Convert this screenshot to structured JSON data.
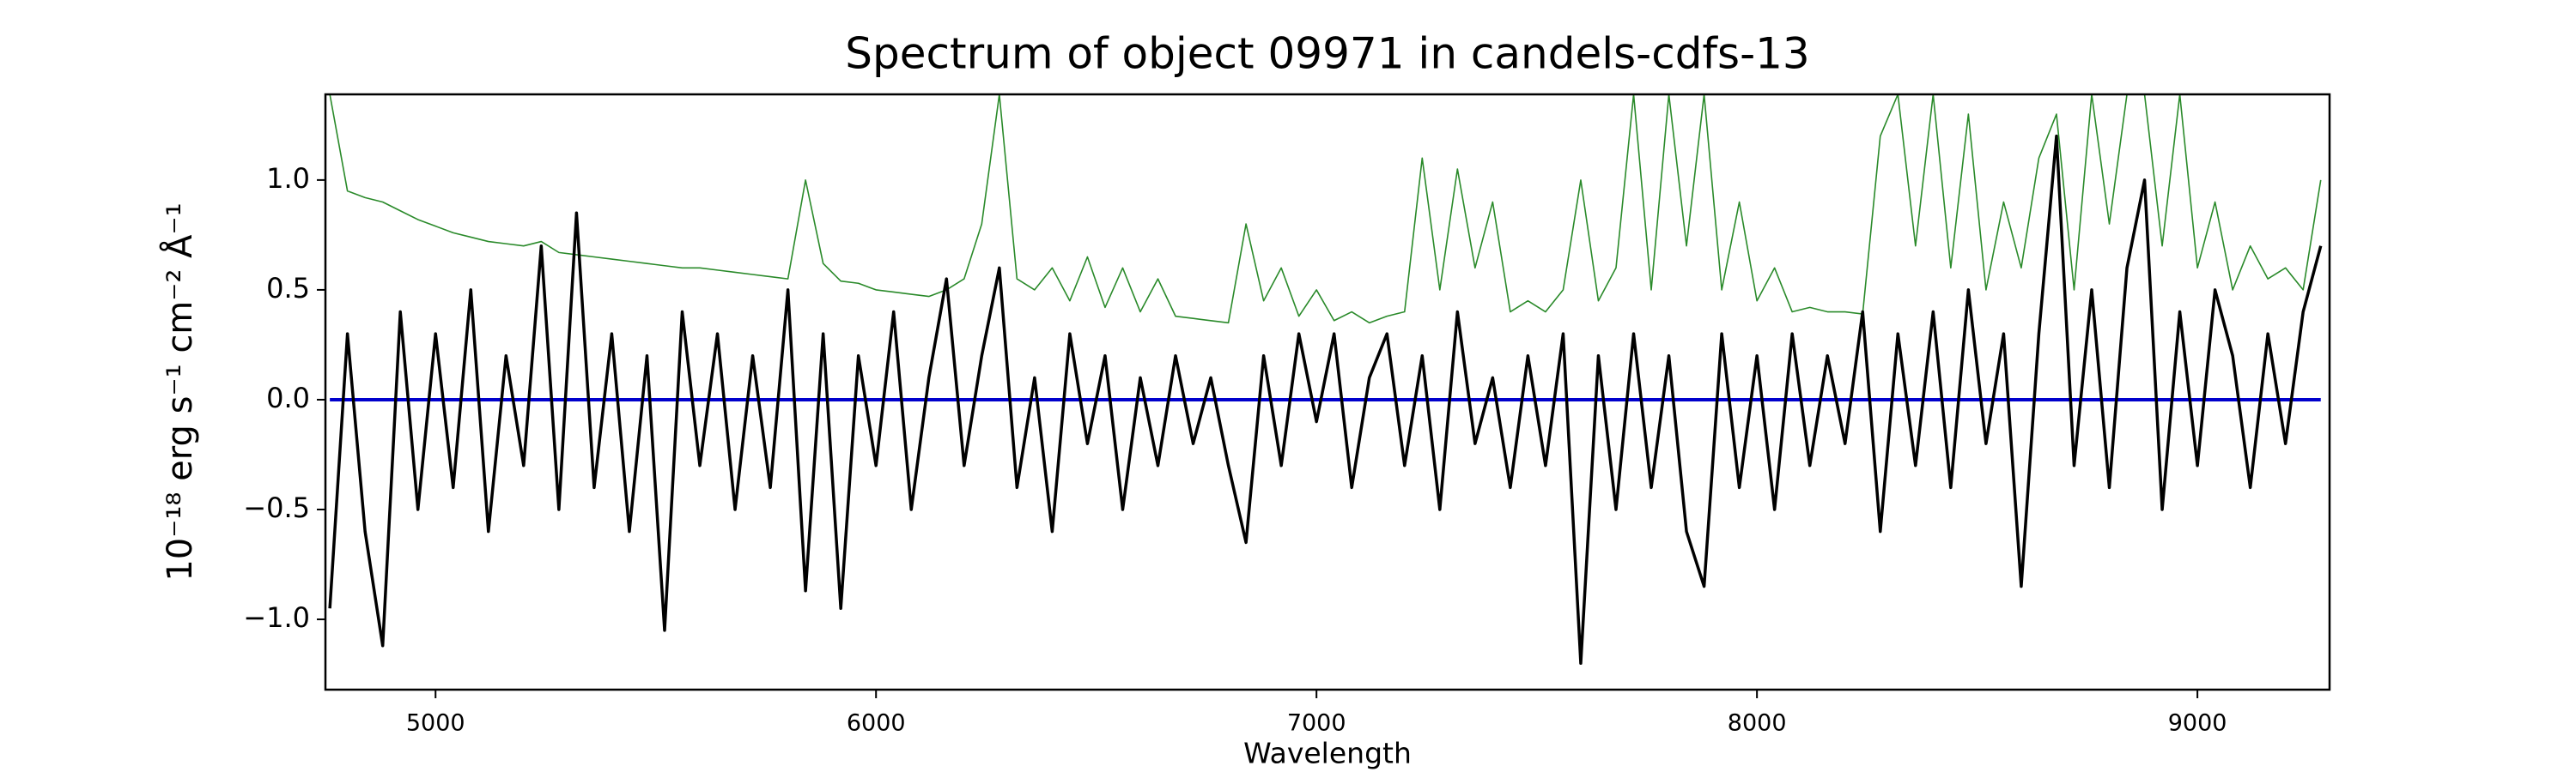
{
  "chart_data": {
    "type": "line",
    "title": "Spectrum of object 09971 in candels-cdfs-13",
    "x_label": "Wavelength",
    "y_label": "10⁻¹⁸ erg s⁻¹ cm⁻² Å⁻¹",
    "xlim": [
      4750,
      9300
    ],
    "ylim": [
      -1.32,
      1.39
    ],
    "xticks": [
      5000,
      6000,
      7000,
      8000,
      9000
    ],
    "yticks": [
      {
        "value": -1.0,
        "label": "−1.0"
      },
      {
        "value": -0.5,
        "label": "−0.5"
      },
      {
        "value": 0,
        "label": "0.0"
      },
      0.5,
      {
        "value": 1.0,
        "label": "1.0"
      }
    ],
    "x": [
      4760,
      4800,
      4840,
      4880,
      4920,
      4960,
      5000,
      5040,
      5080,
      5120,
      5160,
      5200,
      5240,
      5280,
      5320,
      5360,
      5400,
      5440,
      5480,
      5520,
      5560,
      5600,
      5640,
      5680,
      5720,
      5760,
      5800,
      5840,
      5880,
      5920,
      5960,
      6000,
      6040,
      6080,
      6120,
      6160,
      6200,
      6240,
      6280,
      6320,
      6360,
      6400,
      6440,
      6480,
      6520,
      6560,
      6600,
      6640,
      6680,
      6720,
      6760,
      6800,
      6840,
      6880,
      6920,
      6960,
      7000,
      7040,
      7080,
      7120,
      7160,
      7200,
      7240,
      7280,
      7320,
      7360,
      7400,
      7440,
      7480,
      7520,
      7560,
      7600,
      7640,
      7680,
      7720,
      7760,
      7800,
      7840,
      7880,
      7920,
      7960,
      8000,
      8040,
      8080,
      8120,
      8160,
      8200,
      8240,
      8280,
      8320,
      8360,
      8400,
      8440,
      8480,
      8520,
      8560,
      8600,
      8640,
      8680,
      8720,
      8760,
      8800,
      8840,
      8880,
      8920,
      8960,
      9000,
      9040,
      9080,
      9120,
      9160,
      9200,
      9240,
      9280
    ],
    "series": [
      {
        "color": "#2a8a2a",
        "width": 1.6,
        "values": [
          1.39,
          0.95,
          0.92,
          0.9,
          0.86,
          0.82,
          0.79,
          0.76,
          0.74,
          0.72,
          0.71,
          0.7,
          0.72,
          0.67,
          0.66,
          0.65,
          0.64,
          0.63,
          0.62,
          0.61,
          0.6,
          0.6,
          0.59,
          0.58,
          0.57,
          0.56,
          0.55,
          1.0,
          0.62,
          0.54,
          0.53,
          0.5,
          0.49,
          0.48,
          0.47,
          0.5,
          0.55,
          0.8,
          1.39,
          0.55,
          0.5,
          0.6,
          0.45,
          0.65,
          0.42,
          0.6,
          0.4,
          0.55,
          0.38,
          0.37,
          0.36,
          0.35,
          0.8,
          0.45,
          0.6,
          0.38,
          0.5,
          0.36,
          0.4,
          0.35,
          0.38,
          0.4,
          1.1,
          0.5,
          1.05,
          0.6,
          0.9,
          0.4,
          0.45,
          0.4,
          0.5,
          1.0,
          0.45,
          0.6,
          1.39,
          0.5,
          1.39,
          0.7,
          1.39,
          0.5,
          0.9,
          0.45,
          0.6,
          0.4,
          0.42,
          0.4,
          0.4,
          0.39,
          1.2,
          1.39,
          0.7,
          1.39,
          0.6,
          1.3,
          0.5,
          0.9,
          0.6,
          1.1,
          1.3,
          0.5,
          1.39,
          0.8,
          1.39,
          1.39,
          0.7,
          1.39,
          0.6,
          0.9,
          0.5,
          0.7,
          0.55,
          0.6,
          0.5,
          1.0
        ]
      },
      {
        "color": "#0000cc",
        "width": 4,
        "values": [
          0,
          0,
          0,
          0,
          0,
          0,
          0,
          0,
          0,
          0,
          0,
          0,
          0,
          0,
          0,
          0,
          0,
          0,
          0,
          0,
          0,
          0,
          0,
          0,
          0,
          0,
          0,
          0,
          0,
          0,
          0,
          0,
          0,
          0,
          0,
          0,
          0,
          0,
          0,
          0,
          0,
          0,
          0,
          0,
          0,
          0,
          0,
          0,
          0,
          0,
          0,
          0,
          0,
          0,
          0,
          0,
          0,
          0,
          0,
          0,
          0,
          0,
          0,
          0,
          0,
          0,
          0,
          0,
          0,
          0,
          0,
          0,
          0,
          0,
          0,
          0,
          0,
          0,
          0,
          0,
          0,
          0,
          0,
          0,
          0,
          0,
          0,
          0,
          0,
          0,
          0,
          0,
          0,
          0,
          0,
          0,
          0,
          0,
          0,
          0,
          0,
          0,
          0,
          0,
          0,
          0,
          0,
          0,
          0,
          0,
          0,
          0,
          0,
          0
        ]
      },
      {
        "color": "#000000",
        "width": 3.5,
        "values": [
          -0.95,
          0.3,
          -0.6,
          -1.12,
          0.4,
          -0.5,
          0.3,
          -0.4,
          0.5,
          -0.6,
          0.2,
          -0.3,
          0.7,
          -0.5,
          0.85,
          -0.4,
          0.3,
          -0.6,
          0.2,
          -1.05,
          0.4,
          -0.3,
          0.3,
          -0.5,
          0.2,
          -0.4,
          0.5,
          -0.87,
          0.3,
          -0.95,
          0.2,
          -0.3,
          0.4,
          -0.5,
          0.1,
          0.55,
          -0.3,
          0.2,
          0.6,
          -0.4,
          0.1,
          -0.6,
          0.3,
          -0.2,
          0.2,
          -0.5,
          0.1,
          -0.3,
          0.2,
          -0.2,
          0.1,
          -0.3,
          -0.65,
          0.2,
          -0.3,
          0.3,
          -0.1,
          0.3,
          -0.4,
          0.1,
          0.3,
          -0.3,
          0.2,
          -0.5,
          0.4,
          -0.2,
          0.1,
          -0.4,
          0.2,
          -0.3,
          0.3,
          -1.2,
          0.2,
          -0.5,
          0.3,
          -0.4,
          0.2,
          -0.6,
          -0.85,
          0.3,
          -0.4,
          0.2,
          -0.5,
          0.3,
          -0.3,
          0.2,
          -0.2,
          0.4,
          -0.6,
          0.3,
          -0.3,
          0.4,
          -0.4,
          0.5,
          -0.2,
          0.3,
          -0.85,
          0.3,
          1.2,
          -0.3,
          0.5,
          -0.4,
          0.6,
          1.0,
          -0.5,
          0.4,
          -0.3,
          0.5,
          0.2,
          -0.4,
          0.3,
          -0.2,
          0.4,
          0.7
        ]
      }
    ]
  }
}
